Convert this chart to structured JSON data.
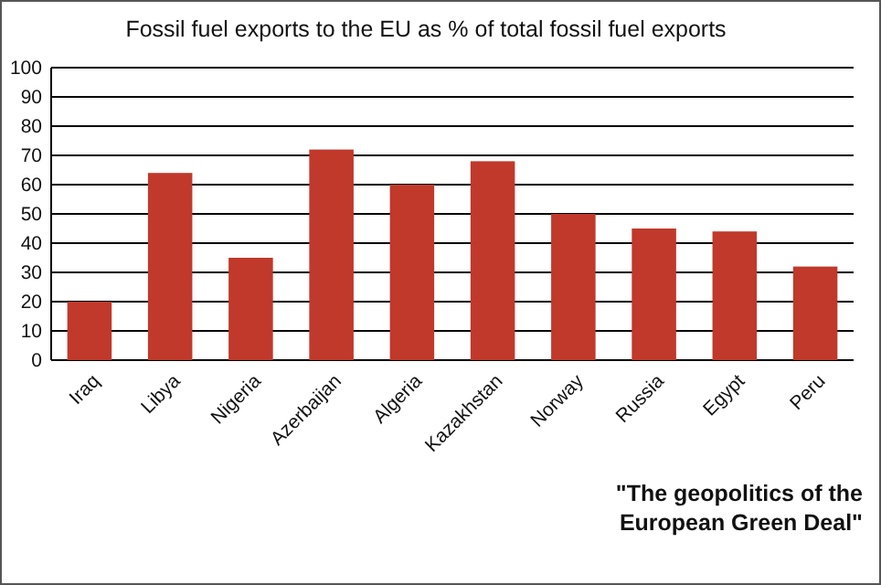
{
  "chart_data": {
    "type": "bar",
    "title": "Fossil fuel exports to the EU as % of total fossil fuel exports",
    "categories": [
      "Iraq",
      "Libya",
      "Nigeria",
      "Azerbaijan",
      "Algeria",
      "Kazakhstan",
      "Norway",
      "Russia",
      "Egypt",
      "Peru"
    ],
    "values": [
      20,
      64,
      35,
      72,
      60,
      68,
      50,
      45,
      44,
      32
    ],
    "color": "#c0392b",
    "ylim": [
      0,
      100
    ],
    "yticks": [
      0,
      10,
      20,
      30,
      40,
      50,
      60,
      70,
      80,
      90,
      100
    ],
    "grid": "y",
    "annotations": [
      "\"The geopolitics of the European Green Deal\""
    ]
  }
}
